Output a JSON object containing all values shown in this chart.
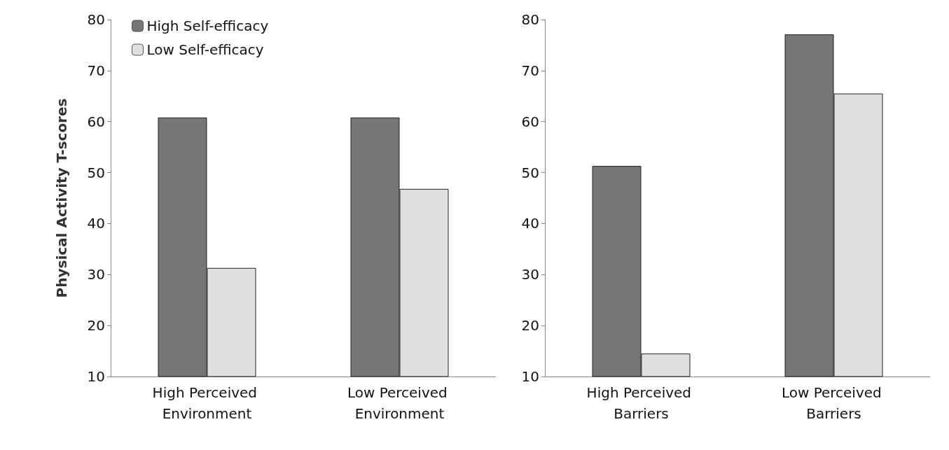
{
  "chart_data": [
    {
      "type": "bar",
      "ylabel": "Physical Activity T-scores",
      "categories": [
        "High Perceived Environment",
        "Low Perceived Environment"
      ],
      "series": [
        {
          "name": "High Self-efficacy",
          "color": "#767676",
          "values": [
            60.8,
            60.8
          ]
        },
        {
          "name": "Low Self-efficacy",
          "color": "#e0e0e0",
          "values": [
            31.3,
            46.8
          ]
        }
      ],
      "ylim": [
        10,
        80
      ],
      "yticks": [
        10,
        20,
        30,
        40,
        50,
        60,
        70,
        80
      ],
      "grid": false,
      "legend": "top left"
    },
    {
      "type": "bar",
      "categories": [
        "High Perceived Barriers",
        "Low Perceived Barriers"
      ],
      "series": [
        {
          "color": "#767676",
          "values": [
            51.3,
            77.1
          ]
        },
        {
          "color": "#e0e0e0",
          "values": [
            14.5,
            65.5
          ]
        }
      ],
      "ylim": [
        10,
        80
      ],
      "yticks": [
        10,
        20,
        30,
        40,
        50,
        60,
        70,
        80
      ],
      "grid": false
    }
  ]
}
